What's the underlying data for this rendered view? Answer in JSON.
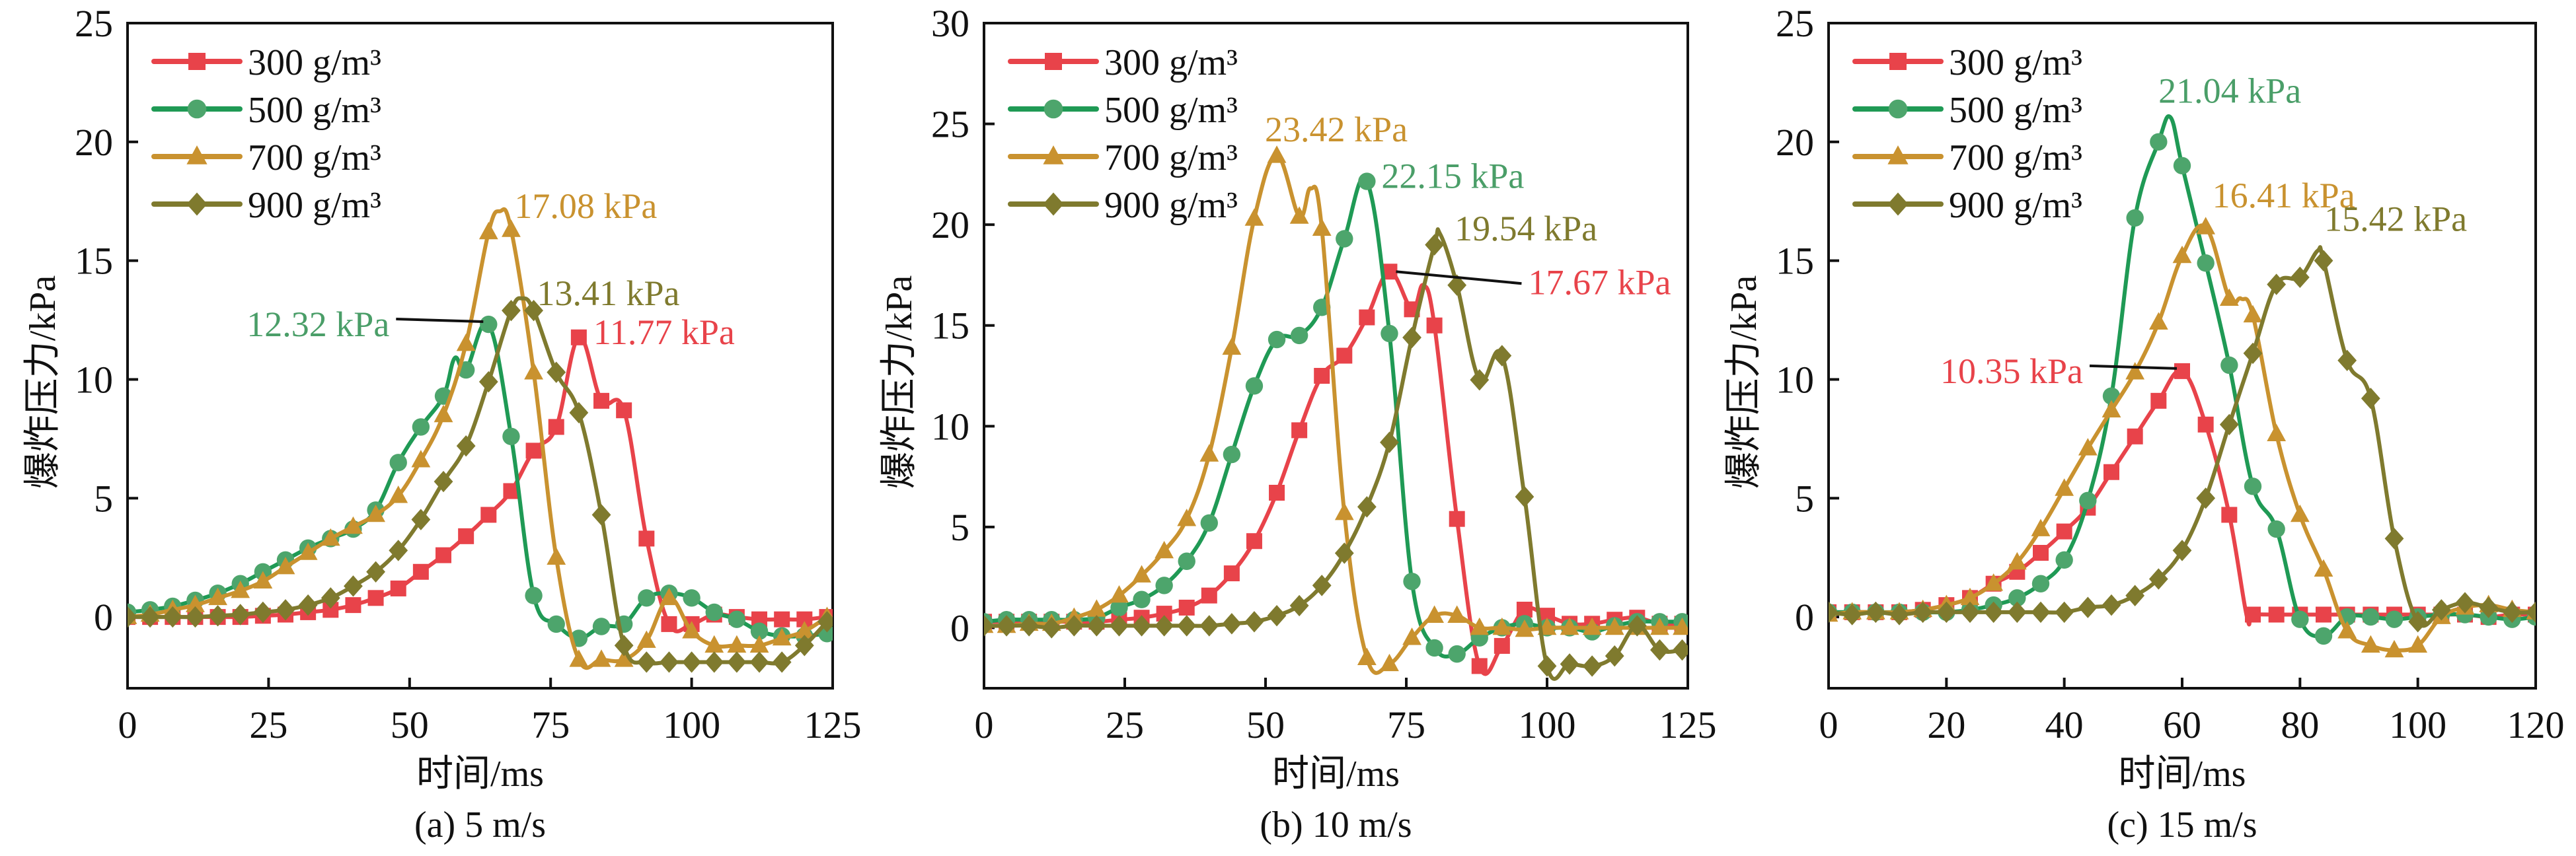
{
  "figure": {
    "captions": [
      "(a) 5 m/s",
      "(b) 10 m/s",
      "(c) 15 m/s"
    ]
  },
  "chart_data": [
    {
      "type": "line",
      "title": "(a) 5 m/s",
      "xlabel": "时间/ms",
      "ylabel": "爆炸压力/kPa",
      "xlim": [
        0,
        125
      ],
      "ylim": [
        -3,
        25
      ],
      "xticks": [
        0,
        25,
        50,
        75,
        100,
        125
      ],
      "yticks": [
        0,
        5,
        10,
        15,
        20,
        25
      ],
      "grid": false,
      "legend_position": "top-left",
      "marker_interval_ms": 4,
      "series": [
        {
          "name": "300 g/m³",
          "color": "#e8434a",
          "marker": "square",
          "x": [
            0,
            4,
            8,
            12,
            16,
            20,
            24,
            28,
            32,
            36,
            40,
            44,
            48,
            52,
            56,
            60,
            64,
            68,
            72,
            76,
            80,
            84,
            88,
            92,
            96,
            100,
            104,
            108,
            112,
            116,
            120,
            124
          ],
          "y": [
            0,
            0,
            0,
            0,
            0,
            0,
            0.05,
            0.1,
            0.2,
            0.3,
            0.5,
            0.8,
            1.2,
            1.9,
            2.6,
            3.4,
            4.3,
            5.3,
            7.0,
            8.0,
            11.77,
            9.1,
            8.7,
            3.3,
            -0.3,
            -0.3,
            0.1,
            0,
            -0.1,
            -0.1,
            -0.1,
            0
          ]
        },
        {
          "name": "500 g/m³",
          "color": "#1f9a55",
          "marker": "circle",
          "x": [
            0,
            4,
            8,
            12,
            16,
            20,
            24,
            28,
            32,
            36,
            40,
            44,
            48,
            52,
            56,
            58,
            60,
            64,
            68,
            72,
            76,
            80,
            84,
            88,
            92,
            96,
            100,
            104,
            108,
            112,
            116,
            120,
            124
          ],
          "y": [
            0.2,
            0.3,
            0.45,
            0.7,
            1.0,
            1.4,
            1.9,
            2.4,
            2.9,
            3.3,
            3.7,
            4.5,
            6.5,
            8.0,
            9.3,
            10.9,
            10.4,
            12.32,
            7.6,
            0.9,
            -0.3,
            -0.9,
            -0.4,
            -0.3,
            0.8,
            1.0,
            0.8,
            0.2,
            -0.1,
            -0.6,
            -0.8,
            -0.8,
            -0.7
          ]
        },
        {
          "name": "700 g/m³",
          "color": "#c9922f",
          "marker": "triangle",
          "x": [
            0,
            4,
            8,
            12,
            16,
            20,
            24,
            28,
            32,
            36,
            40,
            44,
            48,
            52,
            56,
            60,
            64,
            66,
            68,
            72,
            76,
            80,
            84,
            88,
            92,
            96,
            100,
            104,
            108,
            112,
            116,
            120,
            124
          ],
          "y": [
            0,
            0.1,
            0.3,
            0.5,
            0.8,
            1.1,
            1.5,
            2.1,
            2.7,
            3.3,
            3.8,
            4.3,
            5.1,
            6.6,
            8.5,
            11.5,
            16.2,
            17.08,
            16.3,
            10.3,
            2.5,
            -1.8,
            -1.8,
            -1.8,
            -1.0,
            0.8,
            -0.6,
            -1.2,
            -1.2,
            -1.2,
            -0.9,
            -0.6,
            0
          ]
        },
        {
          "name": "900 g/m³",
          "color": "#7f7a2e",
          "marker": "diamond",
          "x": [
            0,
            4,
            8,
            12,
            16,
            20,
            24,
            28,
            32,
            36,
            40,
            44,
            48,
            52,
            56,
            60,
            64,
            68,
            70,
            72,
            76,
            80,
            84,
            88,
            92,
            96,
            100,
            104,
            108,
            112,
            116,
            120,
            124
          ],
          "y": [
            0,
            0,
            0,
            0,
            0.05,
            0.1,
            0.2,
            0.3,
            0.5,
            0.8,
            1.3,
            1.9,
            2.8,
            4.1,
            5.7,
            7.2,
            9.9,
            12.9,
            13.41,
            12.9,
            10.3,
            8.6,
            4.3,
            -1.2,
            -1.9,
            -1.9,
            -1.9,
            -1.9,
            -1.9,
            -1.9,
            -1.9,
            -1.2,
            -0.2
          ]
        }
      ],
      "annotations": [
        {
          "text": "17.08 kPa",
          "series": "700 g/m³",
          "x": 66,
          "y": 17.08,
          "side": "right",
          "leader": false
        },
        {
          "text": "13.41 kPa",
          "series": "900 g/m³",
          "x": 70,
          "y": 13.41,
          "side": "right",
          "leader": false
        },
        {
          "text": "12.32 kPa",
          "series": "500 g/m³",
          "x": 64,
          "y": 12.32,
          "side": "left",
          "leader": true
        },
        {
          "text": "11.77 kPa",
          "series": "300 g/m³",
          "x": 80,
          "y": 11.77,
          "side": "right",
          "leader": false
        }
      ]
    },
    {
      "type": "line",
      "title": "(b) 10 m/s",
      "xlabel": "时间/ms",
      "ylabel": "爆炸压力/kPa",
      "xlim": [
        0,
        125
      ],
      "ylim": [
        -3,
        30
      ],
      "xticks": [
        0,
        25,
        50,
        75,
        100,
        125
      ],
      "yticks": [
        0,
        5,
        10,
        15,
        20,
        25,
        30
      ],
      "grid": false,
      "legend_position": "top-left",
      "marker_interval_ms": 4,
      "series": [
        {
          "name": "300 g/m³",
          "color": "#e8434a",
          "marker": "square",
          "x": [
            0,
            4,
            8,
            12,
            16,
            20,
            24,
            28,
            32,
            36,
            40,
            44,
            48,
            52,
            56,
            60,
            64,
            68,
            72,
            76,
            78,
            80,
            84,
            88,
            92,
            96,
            100,
            104,
            108,
            112,
            116,
            120,
            124
          ],
          "y": [
            0.3,
            0.3,
            0.3,
            0.3,
            0.3,
            0.3,
            0.4,
            0.5,
            0.7,
            1.0,
            1.6,
            2.7,
            4.3,
            6.7,
            9.8,
            12.5,
            13.5,
            15.4,
            17.67,
            15.8,
            17.0,
            15.0,
            5.4,
            -1.9,
            -0.9,
            0.9,
            0.6,
            0.2,
            0.2,
            0.4,
            0.5,
            0.2,
            0.2
          ]
        },
        {
          "name": "500 g/m³",
          "color": "#1f9a55",
          "marker": "circle",
          "x": [
            0,
            4,
            8,
            12,
            16,
            20,
            24,
            28,
            32,
            36,
            40,
            44,
            48,
            52,
            56,
            60,
            64,
            68,
            72,
            76,
            80,
            84,
            88,
            92,
            96,
            100,
            104,
            108,
            112,
            116,
            120,
            124
          ],
          "y": [
            0.3,
            0.4,
            0.4,
            0.4,
            0.4,
            0.5,
            1.0,
            1.4,
            2.1,
            3.3,
            5.2,
            8.6,
            12.0,
            14.3,
            14.5,
            15.9,
            19.3,
            22.15,
            14.6,
            2.3,
            -1.0,
            -1.3,
            -0.5,
            0,
            0.2,
            0,
            0,
            -0.2,
            0.1,
            0.3,
            0.3,
            0.3
          ]
        },
        {
          "name": "700 g/m³",
          "color": "#c9922f",
          "marker": "triangle",
          "x": [
            0,
            4,
            8,
            12,
            16,
            20,
            24,
            28,
            32,
            36,
            40,
            44,
            48,
            52,
            56,
            58,
            60,
            64,
            68,
            72,
            76,
            80,
            84,
            88,
            92,
            96,
            100,
            104,
            108,
            112,
            116,
            120,
            124
          ],
          "y": [
            0.1,
            0.1,
            0.2,
            0.2,
            0.5,
            0.9,
            1.6,
            2.6,
            3.8,
            5.4,
            8.6,
            13.9,
            20.3,
            23.42,
            20.4,
            21.8,
            19.8,
            5.7,
            -1.5,
            -1.8,
            -0.5,
            0.6,
            0.6,
            0,
            0,
            -0.1,
            0,
            0,
            0,
            0,
            0,
            0,
            0
          ]
        },
        {
          "name": "900 g/m³",
          "color": "#7f7a2e",
          "marker": "diamond",
          "x": [
            0,
            4,
            8,
            12,
            16,
            20,
            24,
            28,
            32,
            36,
            40,
            44,
            48,
            52,
            56,
            60,
            64,
            68,
            72,
            76,
            80,
            81,
            84,
            88,
            92,
            96,
            100,
            104,
            108,
            112,
            116,
            120,
            124
          ],
          "y": [
            0.1,
            0.1,
            0.1,
            0,
            0.1,
            0.1,
            0.1,
            0.1,
            0.1,
            0.1,
            0.1,
            0.2,
            0.3,
            0.6,
            1.1,
            2.1,
            3.7,
            6.0,
            9.2,
            14.4,
            19.0,
            19.54,
            17.0,
            12.3,
            13.5,
            6.5,
            -1.9,
            -1.8,
            -1.9,
            -1.4,
            0.1,
            -1.1,
            -1.1
          ]
        }
      ],
      "annotations": [
        {
          "text": "23.42 kPa",
          "series": "700 g/m³",
          "x": 52,
          "y": 23.42,
          "side": "top",
          "leader": false
        },
        {
          "text": "22.15 kPa",
          "series": "500 g/m³",
          "x": 68,
          "y": 22.15,
          "side": "right",
          "leader": false
        },
        {
          "text": "19.54 kPa",
          "series": "900 g/m³",
          "x": 81,
          "y": 19.54,
          "side": "right",
          "leader": false
        },
        {
          "text": "17.67 kPa",
          "series": "300 g/m³",
          "x": 72,
          "y": 17.67,
          "side": "right",
          "leader": true
        }
      ]
    },
    {
      "type": "line",
      "title": "(c) 15 m/s",
      "xlabel": "时间/ms",
      "ylabel": "爆炸压力/kPa",
      "xlim": [
        0,
        120
      ],
      "ylim": [
        -3,
        25
      ],
      "xticks": [
        0,
        20,
        40,
        60,
        80,
        100,
        120
      ],
      "yticks": [
        0,
        5,
        10,
        15,
        20,
        25
      ],
      "grid": false,
      "legend_position": "top-left",
      "marker_interval_ms": 4,
      "series": [
        {
          "name": "300 g/m³",
          "color": "#e8434a",
          "marker": "square",
          "x": [
            0,
            4,
            8,
            12,
            16,
            20,
            24,
            28,
            32,
            36,
            40,
            44,
            48,
            52,
            56,
            60,
            64,
            68,
            71,
            72,
            76,
            80,
            84,
            88,
            92,
            96,
            100,
            104,
            108,
            112,
            116,
            120
          ],
          "y": [
            0.2,
            0.2,
            0.2,
            0.2,
            0.3,
            0.5,
            0.8,
            1.4,
            1.9,
            2.7,
            3.6,
            4.6,
            6.1,
            7.6,
            9.1,
            10.35,
            8.1,
            4.3,
            0,
            0.1,
            0.1,
            0.1,
            0.1,
            0.1,
            0.1,
            0.1,
            0.1,
            0.1,
            0.1,
            0,
            0.1,
            0.1
          ]
        },
        {
          "name": "500 g/m³",
          "color": "#1f9a55",
          "marker": "circle",
          "x": [
            0,
            4,
            8,
            12,
            16,
            20,
            24,
            28,
            32,
            36,
            40,
            44,
            48,
            52,
            56,
            58,
            60,
            64,
            68,
            72,
            76,
            80,
            84,
            88,
            92,
            96,
            100,
            104,
            108,
            112,
            116,
            120
          ],
          "y": [
            0.2,
            0.2,
            0.2,
            0.2,
            0.2,
            0.2,
            0.3,
            0.5,
            0.8,
            1.4,
            2.4,
            4.9,
            9.3,
            16.8,
            20.0,
            21.04,
            19.0,
            14.9,
            10.6,
            5.5,
            3.7,
            -0.1,
            -0.8,
            0,
            0,
            -0.1,
            0,
            0.1,
            0.1,
            0,
            -0.1,
            0
          ]
        },
        {
          "name": "700 g/m³",
          "color": "#c9922f",
          "marker": "triangle",
          "x": [
            0,
            4,
            8,
            12,
            16,
            20,
            24,
            28,
            32,
            36,
            40,
            44,
            48,
            52,
            56,
            60,
            64,
            68,
            70,
            72,
            76,
            80,
            84,
            88,
            92,
            96,
            100,
            104,
            108,
            112,
            116,
            120
          ],
          "y": [
            0.1,
            0.2,
            0.2,
            0.2,
            0.3,
            0.5,
            0.8,
            1.4,
            2.3,
            3.7,
            5.4,
            7.1,
            8.7,
            10.3,
            12.4,
            15.2,
            16.41,
            13.4,
            13.4,
            12.7,
            7.7,
            4.3,
            2.0,
            -0.6,
            -1.2,
            -1.4,
            -1.2,
            0,
            0.4,
            0.5,
            0.3,
            0.2
          ]
        },
        {
          "name": "900 g/m³",
          "color": "#7f7a2e",
          "marker": "diamond",
          "x": [
            0,
            4,
            8,
            12,
            16,
            20,
            24,
            28,
            32,
            36,
            40,
            44,
            48,
            52,
            56,
            60,
            64,
            68,
            72,
            76,
            80,
            83,
            84,
            88,
            92,
            96,
            100,
            104,
            108,
            112,
            116,
            120
          ],
          "y": [
            0.2,
            0.1,
            0.2,
            0.1,
            0.2,
            0.2,
            0.2,
            0.2,
            0.2,
            0.2,
            0.2,
            0.4,
            0.5,
            0.9,
            1.6,
            2.8,
            5.0,
            8.1,
            11.1,
            14.0,
            14.3,
            15.42,
            15.0,
            10.8,
            9.2,
            3.3,
            -0.2,
            0.3,
            0.6,
            0.4,
            0.2,
            0.2
          ]
        }
      ],
      "annotations": [
        {
          "text": "21.04 kPa",
          "series": "500 g/m³",
          "x": 58,
          "y": 21.04,
          "side": "top",
          "leader": false
        },
        {
          "text": "16.41 kPa",
          "series": "700 g/m³",
          "x": 64,
          "y": 16.41,
          "side": "top-right",
          "leader": false
        },
        {
          "text": "15.42 kPa",
          "series": "900 g/m³",
          "x": 83,
          "y": 15.42,
          "side": "top-right",
          "leader": false
        },
        {
          "text": "10.35 kPa",
          "series": "300 g/m³",
          "x": 60,
          "y": 10.35,
          "side": "left",
          "leader": true
        }
      ]
    }
  ]
}
